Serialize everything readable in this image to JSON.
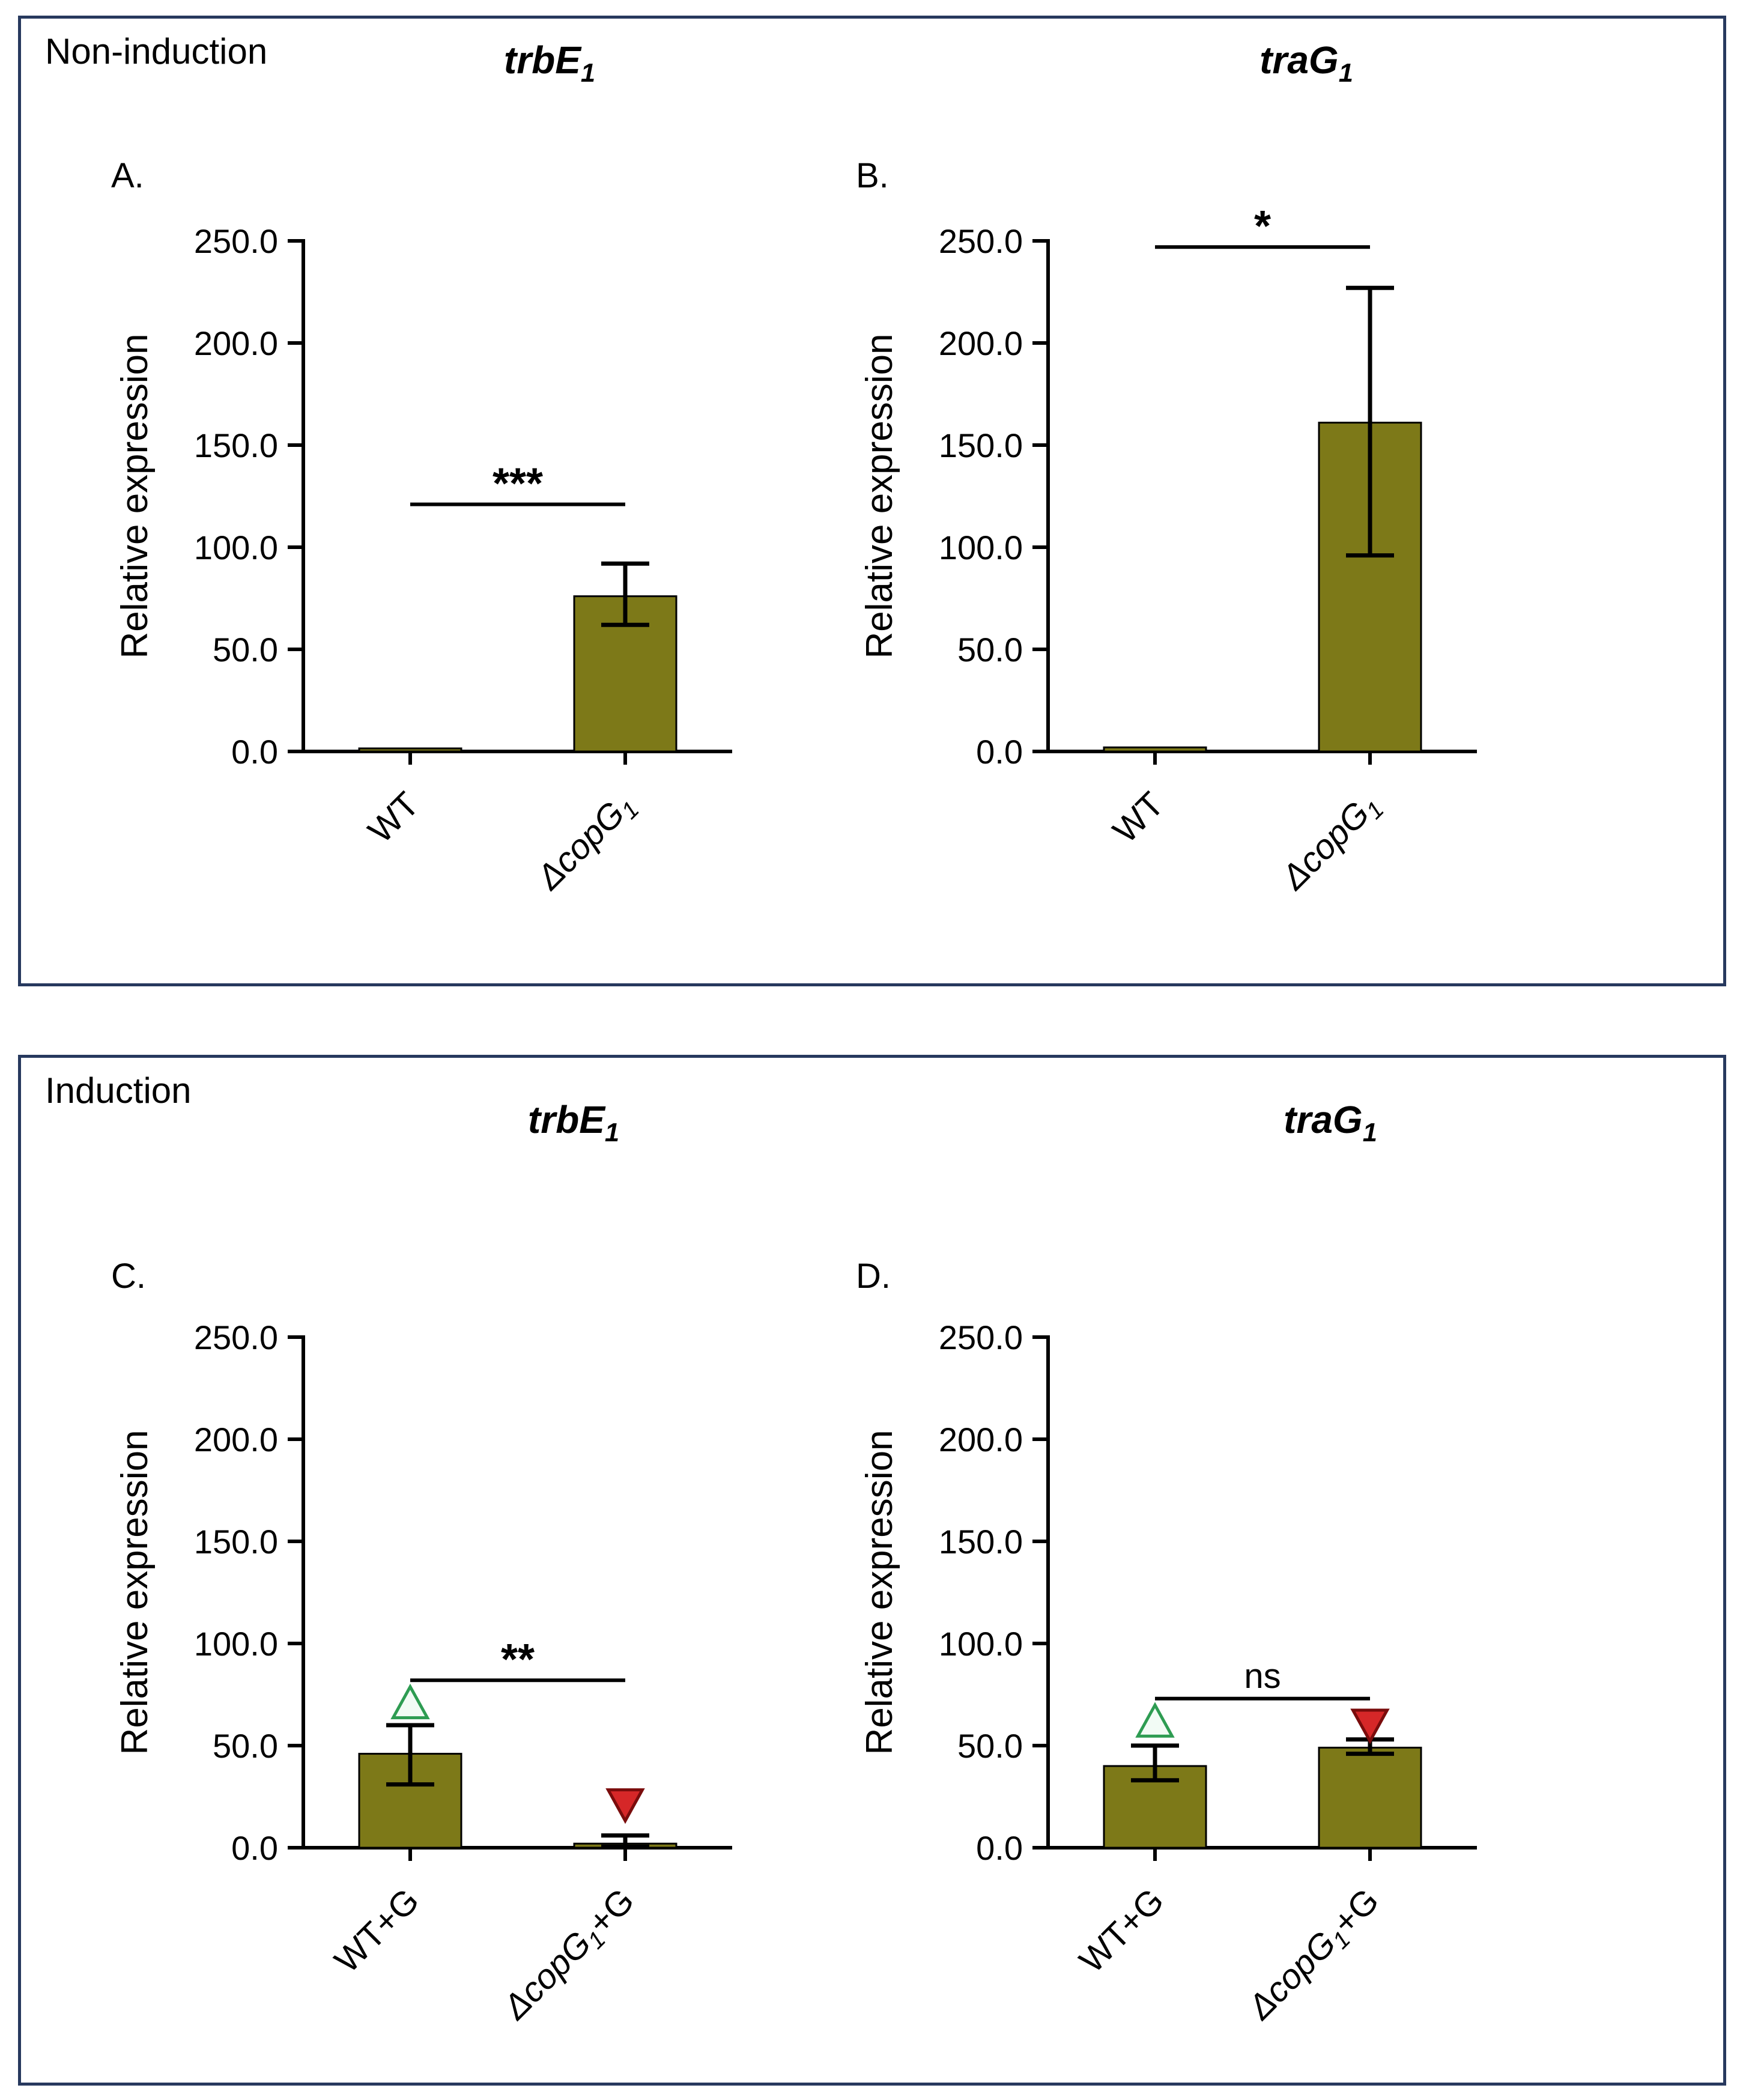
{
  "figure": {
    "background": "#ffffff",
    "panel_border_color": "#27395e",
    "panels": [
      {
        "id": "top",
        "label": "Non-induction",
        "chart_ids": [
          "A",
          "B"
        ]
      },
      {
        "id": "bottom",
        "label": "Induction",
        "chart_ids": [
          "C",
          "D"
        ]
      }
    ]
  },
  "colors": {
    "bar_fill": "#7d7918",
    "bar_edge": "#000000",
    "axis": "#000000",
    "text": "#000000",
    "marker_up_stroke": "#2e9c52",
    "marker_up_fill": "#f2fbf5",
    "marker_down_stroke": "#7a0c0c",
    "marker_down_fill": "#d62728"
  },
  "chart_data": [
    {
      "id": "A",
      "panel_letter": "A.",
      "type": "bar",
      "panel": "Non-induction",
      "title_parts": [
        {
          "text": "trbE",
          "italic": true,
          "sub": false
        },
        {
          "text": "1",
          "italic": true,
          "sub": true
        }
      ],
      "title_text": "trbE1",
      "xlabel": "",
      "ylabel": "Relative expression",
      "ylim": [
        0,
        250
      ],
      "yticks": [
        0,
        50,
        100,
        150,
        200,
        250
      ],
      "ytick_labels": [
        "0.0",
        "50.0",
        "100.0",
        "150.0",
        "200.0",
        "250.0"
      ],
      "categories": [
        {
          "text": "WT",
          "parts": [
            {
              "text": "WT",
              "italic": false,
              "sub": false
            }
          ]
        },
        {
          "text": "ΔcopG1",
          "parts": [
            {
              "text": "ΔcopG",
              "italic": true,
              "sub": false
            },
            {
              "text": "1",
              "italic": true,
              "sub": true
            }
          ]
        }
      ],
      "values": [
        1.5,
        76
      ],
      "errors": [
        null,
        {
          "low": 62,
          "high": 92
        }
      ],
      "markers": [],
      "significance": {
        "label": "***",
        "y": 121
      }
    },
    {
      "id": "B",
      "panel_letter": "B.",
      "type": "bar",
      "panel": "Non-induction",
      "title_parts": [
        {
          "text": "traG",
          "italic": true,
          "sub": false
        },
        {
          "text": "1",
          "italic": true,
          "sub": true
        }
      ],
      "title_text": "traG1",
      "xlabel": "",
      "ylabel": "Relative expression",
      "ylim": [
        0,
        250
      ],
      "yticks": [
        0,
        50,
        100,
        150,
        200,
        250
      ],
      "ytick_labels": [
        "0.0",
        "50.0",
        "100.0",
        "150.0",
        "200.0",
        "250.0"
      ],
      "categories": [
        {
          "text": "WT",
          "parts": [
            {
              "text": "WT",
              "italic": false,
              "sub": false
            }
          ]
        },
        {
          "text": "ΔcopG1",
          "parts": [
            {
              "text": "ΔcopG",
              "italic": true,
              "sub": false
            },
            {
              "text": "1",
              "italic": true,
              "sub": true
            }
          ]
        }
      ],
      "values": [
        2,
        161
      ],
      "errors": [
        null,
        {
          "low": 96,
          "high": 227
        }
      ],
      "markers": [],
      "significance": {
        "label": "*",
        "y": 247
      }
    },
    {
      "id": "C",
      "panel_letter": "C.",
      "type": "bar",
      "panel": "Induction",
      "title_parts": [
        {
          "text": "trbE",
          "italic": true,
          "sub": false
        },
        {
          "text": "1",
          "italic": true,
          "sub": true
        }
      ],
      "title_text": "trbE1",
      "xlabel": "",
      "ylabel": "Relative expression",
      "ylim": [
        0,
        250
      ],
      "yticks": [
        0,
        50,
        100,
        150,
        200,
        250
      ],
      "ytick_labels": [
        "0.0",
        "50.0",
        "100.0",
        "150.0",
        "200.0",
        "250.0"
      ],
      "categories": [
        {
          "text": "WT+G",
          "parts": [
            {
              "text": "WT+G",
              "italic": false,
              "sub": false
            }
          ]
        },
        {
          "text": "ΔcopG1+G",
          "parts": [
            {
              "text": "ΔcopG",
              "italic": true,
              "sub": false
            },
            {
              "text": "1",
              "italic": true,
              "sub": true
            },
            {
              "text": "+G",
              "italic": false,
              "sub": false
            }
          ]
        }
      ],
      "values": [
        46,
        2
      ],
      "errors": [
        {
          "low": 31,
          "high": 60
        },
        {
          "low": 0.5,
          "high": 6
        }
      ],
      "markers": [
        {
          "category": 0,
          "shape": "triangle-up",
          "y": 70
        },
        {
          "category": 1,
          "shape": "triangle-down",
          "y": 22
        }
      ],
      "significance": {
        "label": "**",
        "y": 82
      }
    },
    {
      "id": "D",
      "panel_letter": "D.",
      "type": "bar",
      "panel": "Induction",
      "title_parts": [
        {
          "text": "traG",
          "italic": true,
          "sub": false
        },
        {
          "text": "1",
          "italic": true,
          "sub": true
        }
      ],
      "title_text": "traG1",
      "xlabel": "",
      "ylabel": "Relative expression",
      "ylim": [
        0,
        250
      ],
      "yticks": [
        0,
        50,
        100,
        150,
        200,
        250
      ],
      "ytick_labels": [
        "0.0",
        "50.0",
        "100.0",
        "150.0",
        "200.0",
        "250.0"
      ],
      "categories": [
        {
          "text": "WT+G",
          "parts": [
            {
              "text": "WT+G",
              "italic": false,
              "sub": false
            }
          ]
        },
        {
          "text": "ΔcopG1+G",
          "parts": [
            {
              "text": "ΔcopG",
              "italic": true,
              "sub": false
            },
            {
              "text": "1",
              "italic": true,
              "sub": true
            },
            {
              "text": "+G",
              "italic": false,
              "sub": false
            }
          ]
        }
      ],
      "values": [
        40,
        49
      ],
      "errors": [
        {
          "low": 33,
          "high": 50
        },
        {
          "low": 46,
          "high": 53
        }
      ],
      "markers": [
        {
          "category": 0,
          "shape": "triangle-up",
          "y": 61
        },
        {
          "category": 1,
          "shape": "triangle-down",
          "y": 61
        }
      ],
      "significance": {
        "label": "ns",
        "y": 73
      }
    }
  ]
}
